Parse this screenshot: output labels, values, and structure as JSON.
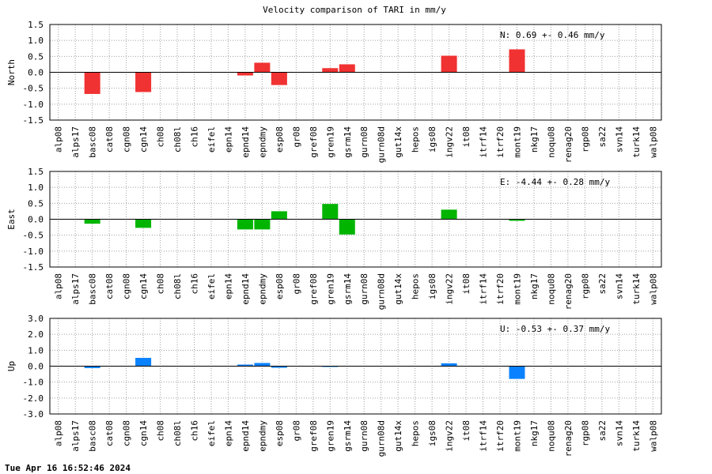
{
  "title": "Velocity comparison of TARI in mm/y",
  "footer": "Tue Apr 16 16:52:46 2024",
  "chart_data": [
    {
      "type": "bar",
      "ylabel": "North",
      "ylim": [
        -1.5,
        1.5
      ],
      "yticks": [
        "1.5",
        "1.0",
        "0.5",
        "0.0",
        "-0.5",
        "-1.0",
        "-1.5"
      ],
      "color": "#f03232",
      "annotation": "N:   0.69 +-  0.46 mm/y",
      "grid": true,
      "categories": [
        "alp08",
        "alps17",
        "basc08",
        "cat08",
        "cgn08",
        "cgn14",
        "ch08",
        "ch08l",
        "ch16",
        "eifel",
        "epn14",
        "epnd14",
        "epndmy",
        "esp08",
        "gr08",
        "gref08",
        "gren19",
        "gsrm14",
        "gurn08",
        "gurn08d",
        "gut14x",
        "hepos",
        "igs08",
        "ingv22",
        "it08",
        "itrf14",
        "itrf20",
        "mont19",
        "nkg17",
        "noqu08",
        "renag20",
        "rgp08",
        "sa22",
        "svn14",
        "turk14",
        "walp08"
      ],
      "values": [
        0,
        0,
        -0.68,
        0,
        0,
        -0.62,
        0,
        0,
        0,
        0,
        0,
        -0.1,
        0.3,
        -0.4,
        0,
        0,
        0.13,
        0.25,
        0,
        0,
        0,
        0,
        0,
        0.52,
        0,
        0,
        0,
        0.72,
        0,
        0,
        0,
        0,
        0,
        0,
        0,
        0
      ]
    },
    {
      "type": "bar",
      "ylabel": "East",
      "ylim": [
        -1.5,
        1.5
      ],
      "yticks": [
        "1.5",
        "1.0",
        "0.5",
        "0.0",
        "-0.5",
        "-1.0",
        "-1.5"
      ],
      "color": "#00b400",
      "annotation": "E:  -4.44 +-  0.28 mm/y",
      "grid": true,
      "categories": [
        "alp08",
        "alps17",
        "basc08",
        "cat08",
        "cgn08",
        "cgn14",
        "ch08",
        "ch08l",
        "ch16",
        "eifel",
        "epn14",
        "epnd14",
        "epndmy",
        "esp08",
        "gr08",
        "gref08",
        "gren19",
        "gsrm14",
        "gurn08",
        "gurn08d",
        "gut14x",
        "hepos",
        "igs08",
        "ingv22",
        "it08",
        "itrf14",
        "itrf20",
        "mont19",
        "nkg17",
        "noqu08",
        "renag20",
        "rgp08",
        "sa22",
        "svn14",
        "turk14",
        "walp08"
      ],
      "values": [
        0,
        0,
        -0.14,
        0,
        0,
        -0.27,
        0,
        0,
        0,
        0,
        0,
        -0.32,
        -0.32,
        0.25,
        0,
        0,
        0.48,
        -0.48,
        0,
        0,
        0,
        0,
        0,
        0.3,
        0,
        0,
        0,
        -0.05,
        0,
        0,
        0,
        0,
        0,
        0,
        0,
        0
      ]
    },
    {
      "type": "bar",
      "ylabel": "Up",
      "ylim": [
        -3.0,
        3.0
      ],
      "yticks": [
        "3.0",
        "2.0",
        "1.0",
        "0.0",
        "-1.0",
        "-2.0",
        "-3.0"
      ],
      "color": "#0a82ff",
      "annotation": "U:  -0.53 +-  0.37 mm/y",
      "grid": true,
      "categories": [
        "alp08",
        "alps17",
        "basc08",
        "cat08",
        "cgn08",
        "cgn14",
        "ch08",
        "ch08l",
        "ch16",
        "eifel",
        "epn14",
        "epnd14",
        "epndmy",
        "esp08",
        "gr08",
        "gref08",
        "gren19",
        "gsrm14",
        "gurn08",
        "gurn08d",
        "gut14x",
        "hepos",
        "igs08",
        "ingv22",
        "it08",
        "itrf14",
        "itrf20",
        "mont19",
        "nkg17",
        "noqu08",
        "renag20",
        "rgp08",
        "sa22",
        "svn14",
        "turk14",
        "walp08"
      ],
      "values": [
        0,
        0,
        -0.12,
        0,
        0,
        0.52,
        0,
        0,
        0,
        0,
        0,
        0.1,
        0.2,
        -0.1,
        0,
        0,
        -0.05,
        0,
        0,
        0,
        0,
        0,
        0,
        0.18,
        0,
        0,
        0,
        -0.8,
        0,
        0,
        0,
        0,
        0,
        0,
        0,
        0
      ]
    }
  ]
}
